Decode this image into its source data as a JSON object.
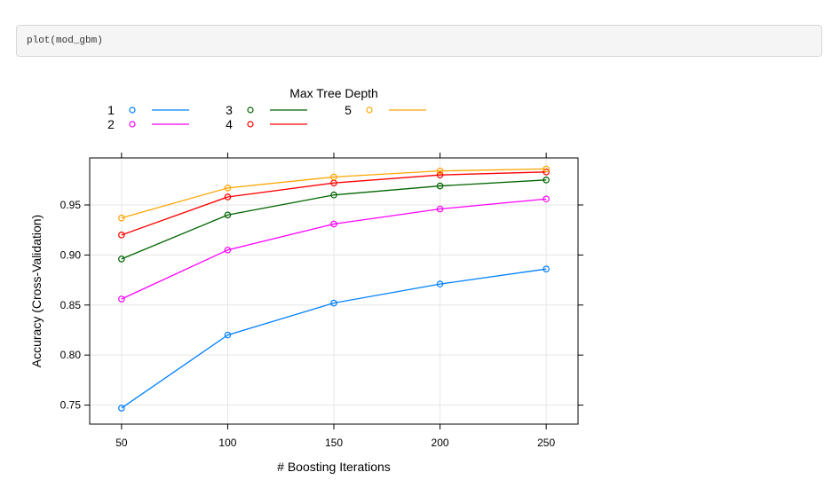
{
  "code": {
    "text": "plot(mod_gbm)"
  },
  "chart_data": {
    "type": "line",
    "legend_title": "Max Tree Depth",
    "xlabel": "# Boosting Iterations",
    "ylabel": "Accuracy (Cross-Validation)",
    "x": [
      50,
      100,
      150,
      200,
      250
    ],
    "xlim": [
      35,
      265
    ],
    "ylim": [
      0.731,
      0.997
    ],
    "x_ticks": [
      50,
      100,
      150,
      200,
      250
    ],
    "x_tick_labels": [
      "50",
      "100",
      "150",
      "200",
      "250"
    ],
    "y_ticks": [
      0.75,
      0.8,
      0.85,
      0.9,
      0.95
    ],
    "y_tick_labels": [
      "0.75",
      "0.80",
      "0.85",
      "0.90",
      "0.95"
    ],
    "grid": true,
    "legend_position": "top",
    "series": [
      {
        "name": "1",
        "color": "#0080ff",
        "values": [
          0.747,
          0.82,
          0.852,
          0.871,
          0.886
        ]
      },
      {
        "name": "2",
        "color": "#ff00ff",
        "values": [
          0.856,
          0.905,
          0.931,
          0.946,
          0.956
        ]
      },
      {
        "name": "3",
        "color": "#006400",
        "values": [
          0.896,
          0.94,
          0.96,
          0.969,
          0.975
        ]
      },
      {
        "name": "4",
        "color": "#ff0000",
        "values": [
          0.92,
          0.958,
          0.972,
          0.98,
          0.983
        ]
      },
      {
        "name": "5",
        "color": "#ffa500",
        "values": [
          0.937,
          0.967,
          0.978,
          0.984,
          0.986
        ]
      }
    ]
  }
}
